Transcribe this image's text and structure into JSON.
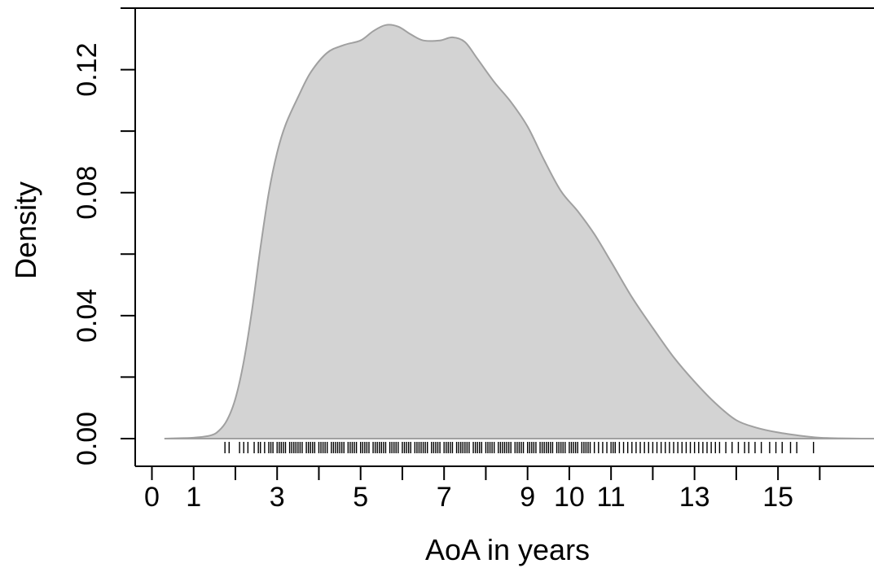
{
  "chart_data": {
    "type": "area",
    "title": "",
    "xlabel": "AoA in years",
    "ylabel": "Density",
    "xlim": [
      -0.4,
      17.3
    ],
    "ylim": [
      -0.009,
      0.14
    ],
    "x_ticks": [
      0,
      1,
      2,
      3,
      4,
      5,
      6,
      7,
      8,
      9,
      10,
      11,
      12,
      13,
      14,
      15,
      16
    ],
    "x_tick_labels": [
      "0",
      "1",
      "",
      "3",
      "",
      "5",
      "",
      "7",
      "",
      "9",
      "10",
      "11",
      "",
      "13",
      "",
      "15",
      ""
    ],
    "y_ticks": [
      0.0,
      0.02,
      0.04,
      0.06,
      0.08,
      0.1,
      0.12
    ],
    "y_tick_labels": [
      "0.00",
      "",
      "0.04",
      "",
      "0.08",
      "",
      "0.12"
    ],
    "grid": false,
    "legend": "none",
    "fill_color": "#d3d3d3",
    "line_color": "#a0a0a0",
    "series": [
      {
        "x": [
          0.3,
          1.0,
          1.4,
          1.6,
          1.8,
          2.0,
          2.2,
          2.4,
          2.6,
          2.8,
          3.0,
          3.2,
          3.5,
          3.8,
          4.2,
          4.6,
          5.0,
          5.3,
          5.6,
          5.9,
          6.2,
          6.5,
          6.9,
          7.2,
          7.5,
          7.8,
          8.2,
          8.6,
          9.0,
          9.4,
          9.8,
          10.2,
          10.6,
          11.0,
          11.5,
          12.0,
          12.5,
          13.0,
          13.5,
          14.0,
          14.5,
          15.0,
          15.5,
          16.0,
          16.5,
          17.0,
          17.3
        ],
        "y": [
          0.0,
          0.0003,
          0.001,
          0.0025,
          0.006,
          0.013,
          0.025,
          0.042,
          0.062,
          0.08,
          0.093,
          0.102,
          0.111,
          0.119,
          0.1255,
          0.128,
          0.1295,
          0.1325,
          0.1345,
          0.134,
          0.1315,
          0.1295,
          0.1295,
          0.1305,
          0.129,
          0.1235,
          0.116,
          0.1095,
          0.1015,
          0.0905,
          0.0805,
          0.074,
          0.0665,
          0.0575,
          0.046,
          0.036,
          0.0265,
          0.0185,
          0.0115,
          0.006,
          0.0035,
          0.002,
          0.001,
          0.0003,
          0.0001,
          0.0,
          0.0
        ]
      }
    ],
    "rug": [
      1.75,
      1.85,
      2.1,
      2.2,
      2.3,
      2.45,
      2.55,
      2.6,
      2.7,
      2.8,
      2.85,
      2.9,
      3.0,
      3.05,
      3.1,
      3.15,
      3.2,
      3.3,
      3.35,
      3.4,
      3.45,
      3.5,
      3.55,
      3.6,
      3.7,
      3.75,
      3.8,
      3.85,
      3.9,
      4.0,
      4.05,
      4.1,
      4.15,
      4.2,
      4.3,
      4.35,
      4.4,
      4.45,
      4.5,
      4.55,
      4.6,
      4.7,
      4.75,
      4.8,
      4.85,
      4.9,
      5.0,
      5.05,
      5.1,
      5.15,
      5.2,
      5.3,
      5.35,
      5.4,
      5.45,
      5.5,
      5.55,
      5.6,
      5.7,
      5.75,
      5.8,
      5.85,
      5.9,
      6.0,
      6.05,
      6.1,
      6.15,
      6.2,
      6.3,
      6.35,
      6.4,
      6.45,
      6.5,
      6.55,
      6.6,
      6.7,
      6.75,
      6.8,
      6.85,
      6.9,
      7.0,
      7.05,
      7.1,
      7.15,
      7.2,
      7.3,
      7.35,
      7.4,
      7.45,
      7.5,
      7.55,
      7.6,
      7.7,
      7.75,
      7.8,
      7.85,
      7.9,
      8.0,
      8.05,
      8.1,
      8.15,
      8.2,
      8.3,
      8.35,
      8.4,
      8.45,
      8.5,
      8.55,
      8.6,
      8.7,
      8.75,
      8.8,
      8.85,
      8.9,
      9.0,
      9.05,
      9.1,
      9.15,
      9.2,
      9.3,
      9.35,
      9.4,
      9.45,
      9.5,
      9.55,
      9.6,
      9.7,
      9.75,
      9.8,
      9.85,
      9.9,
      10.0,
      10.05,
      10.1,
      10.15,
      10.2,
      10.3,
      10.35,
      10.4,
      10.45,
      10.5,
      10.6,
      10.7,
      10.8,
      10.9,
      11.0,
      11.05,
      11.1,
      11.2,
      11.3,
      11.4,
      11.5,
      11.6,
      11.7,
      11.8,
      11.9,
      12.0,
      12.1,
      12.2,
      12.3,
      12.4,
      12.5,
      12.6,
      12.7,
      12.8,
      12.9,
      13.0,
      13.1,
      13.2,
      13.3,
      13.4,
      13.5,
      13.6,
      13.75,
      13.9,
      14.05,
      14.2,
      14.3,
      14.45,
      14.6,
      14.8,
      14.95,
      15.1,
      15.3,
      15.45,
      15.85
    ]
  }
}
